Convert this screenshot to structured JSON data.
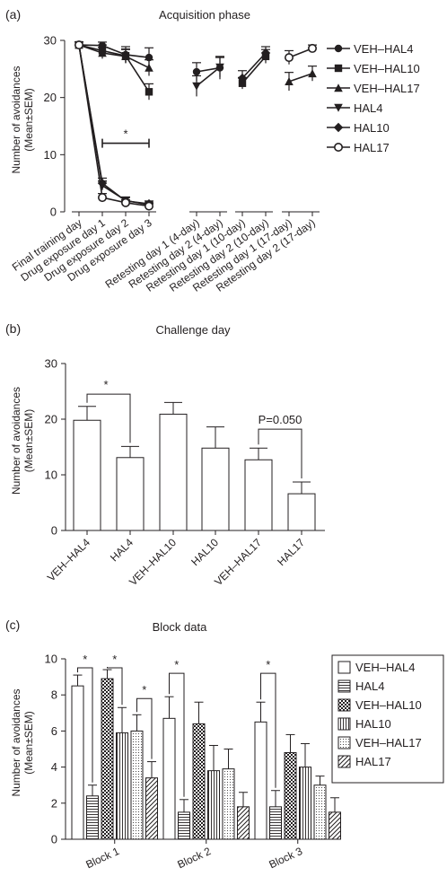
{
  "chart_data": [
    {
      "panel_label": "(a)",
      "type": "line",
      "title": "Acquisition phase",
      "ylabel": "Number of avoidances\n(Mean±SEM)",
      "xlabel": "",
      "ylim": [
        0,
        30
      ],
      "yticks": [
        0,
        10,
        20,
        30
      ],
      "categories": [
        "Final training day",
        "Drug exposure day 1",
        "Drug exposure day 2",
        "Drug exposure day 3",
        "Retesting day 1 (4-day)",
        "Retesting day 2 (4-day)",
        "Retesting day 1 (10-day)",
        "Retesting day 2 (10-day)",
        "Retesting day 1 (17-day)",
        "Retesting day 2 (17-day)"
      ],
      "segments": [
        [
          0,
          3
        ],
        [
          4,
          5
        ],
        [
          6,
          7
        ],
        [
          8,
          9
        ]
      ],
      "series": [
        {
          "name": "VEH–HAL4",
          "marker": "circle",
          "values": [
            29.2,
            29.1,
            27.5,
            27.0,
            24.5,
            25.2,
            null,
            null,
            null,
            null
          ],
          "err": [
            0.5,
            0.6,
            1.4,
            1.7,
            1.6,
            2.0,
            null,
            null,
            null,
            null
          ]
        },
        {
          "name": "VEH–HAL10",
          "marker": "square",
          "values": [
            29.2,
            28.2,
            27.3,
            21.0,
            null,
            null,
            22.5,
            27.2,
            null,
            null
          ],
          "err": [
            0.5,
            1.0,
            1.2,
            1.4,
            null,
            null,
            1.0,
            1.2,
            null,
            null
          ]
        },
        {
          "name": "VEH–HAL17",
          "marker": "triangle-up",
          "values": [
            29.2,
            27.8,
            27.2,
            25.2,
            null,
            null,
            null,
            null,
            22.8,
            24.2
          ],
          "err": [
            0.5,
            1.0,
            1.2,
            1.4,
            null,
            null,
            null,
            null,
            1.6,
            1.3
          ]
        },
        {
          "name": "HAL4",
          "marker": "triangle-down",
          "values": [
            29.2,
            4.6,
            2.0,
            1.2,
            22.0,
            25.3,
            null,
            null,
            null,
            null
          ],
          "err": [
            0.5,
            0.8,
            0.6,
            0.4,
            1.8,
            1.7,
            null,
            null,
            null,
            null
          ]
        },
        {
          "name": "HAL10",
          "marker": "diamond",
          "values": [
            29.2,
            5.0,
            1.9,
            1.4,
            null,
            null,
            23.4,
            27.8,
            null,
            null
          ],
          "err": [
            0.5,
            0.9,
            0.6,
            0.5,
            null,
            null,
            1.3,
            1.1,
            null,
            null
          ]
        },
        {
          "name": "HAL17",
          "marker": "circle-open",
          "values": [
            29.2,
            2.5,
            1.6,
            1.0,
            null,
            null,
            null,
            null,
            27.0,
            28.6
          ],
          "err": [
            0.5,
            0.7,
            0.5,
            0.4,
            null,
            null,
            null,
            null,
            1.2,
            0.6
          ]
        }
      ],
      "annotations": [
        {
          "text": "*",
          "from": 1,
          "to": 3,
          "y": 12
        }
      ]
    },
    {
      "panel_label": "(b)",
      "type": "bar",
      "title": "Challenge day",
      "ylabel": "Number of avoidances\n(Mean±SEM)",
      "xlabel": "",
      "ylim": [
        0,
        30
      ],
      "yticks": [
        0,
        10,
        20,
        30
      ],
      "categories": [
        "VEH–HAL4",
        "HAL4",
        "VEH–HAL10",
        "HAL10",
        "VEH–HAL17",
        "HAL17"
      ],
      "values": [
        19.8,
        13.1,
        20.9,
        14.8,
        12.7,
        6.6
      ],
      "err": [
        2.5,
        2.0,
        2.1,
        3.8,
        2.1,
        2.1
      ],
      "annotations": [
        {
          "text": "*",
          "from": 0,
          "to": 1,
          "y": 24.5
        },
        {
          "text": "P=0.050",
          "from": 4,
          "to": 5,
          "y": 18.2
        }
      ]
    },
    {
      "panel_label": "(c)",
      "type": "bar",
      "title": "Block data",
      "ylabel": "Number of avoidances\n(Mean±SEM)",
      "xlabel": "",
      "ylim": [
        0,
        10
      ],
      "yticks": [
        0,
        2,
        4,
        6,
        8,
        10
      ],
      "categories": [
        "Block 1",
        "Block 2",
        "Block 3"
      ],
      "legend_position": "right",
      "series": [
        {
          "name": "VEH–HAL4",
          "pattern": "plain",
          "values": [
            8.5,
            6.7,
            6.5
          ],
          "err": [
            0.6,
            1.2,
            1.1
          ]
        },
        {
          "name": "HAL4",
          "pattern": "hlines",
          "values": [
            2.4,
            1.5,
            1.8
          ],
          "err": [
            0.6,
            0.7,
            0.9
          ]
        },
        {
          "name": "VEH–HAL10",
          "pattern": "checker",
          "values": [
            8.9,
            6.4,
            4.8
          ],
          "err": [
            0.5,
            1.2,
            1.0
          ]
        },
        {
          "name": "HAL10",
          "pattern": "vlines",
          "values": [
            5.9,
            3.8,
            4.0
          ],
          "err": [
            1.4,
            1.4,
            1.3
          ]
        },
        {
          "name": "VEH–HAL17",
          "pattern": "dots",
          "values": [
            6.0,
            3.9,
            3.0
          ],
          "err": [
            0.9,
            1.1,
            0.5
          ]
        },
        {
          "name": "HAL17",
          "pattern": "diag",
          "values": [
            3.4,
            1.8,
            1.5
          ],
          "err": [
            0.9,
            0.8,
            0.8
          ]
        }
      ],
      "annotations": [
        {
          "text": "*",
          "group": 0,
          "from": 0,
          "to": 1,
          "y": 9.5
        },
        {
          "text": "*",
          "group": 0,
          "from": 2,
          "to": 3,
          "y": 9.5
        },
        {
          "text": "*",
          "group": 0,
          "from": 4,
          "to": 5,
          "y": 7.8
        },
        {
          "text": "*",
          "group": 1,
          "from": 0,
          "to": 1,
          "y": 9.2
        },
        {
          "text": "*",
          "group": 2,
          "from": 0,
          "to": 1,
          "y": 9.2
        }
      ]
    }
  ]
}
